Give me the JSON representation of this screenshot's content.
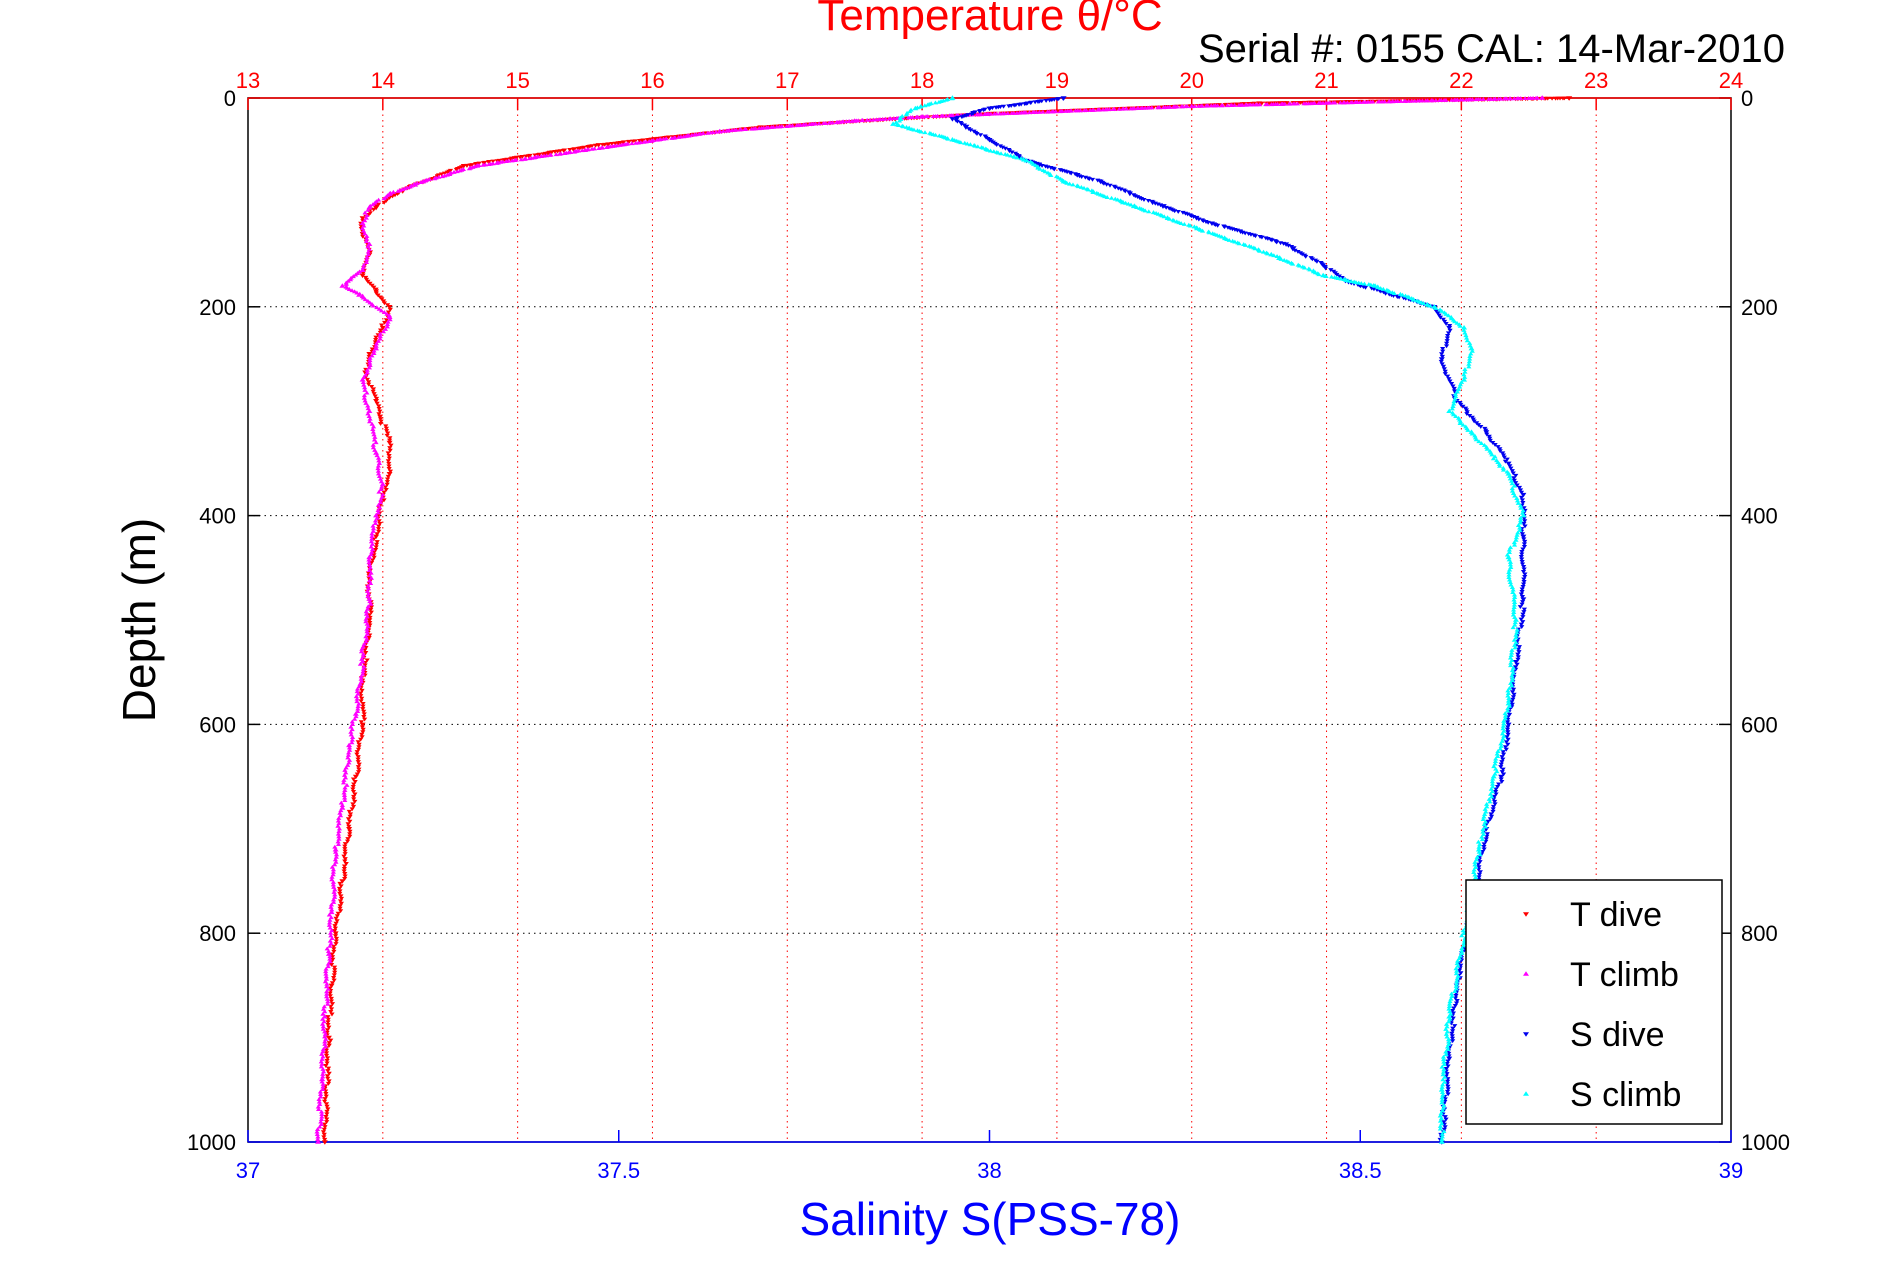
{
  "chart_data": {
    "type": "scatter",
    "title": "Temperature θ/°C",
    "subtitle": "Serial #: 0155  CAL: 14-Mar-2010",
    "ylabel": "Depth (m)",
    "xlabel_bottom": "Salinity S(PSS-78)",
    "x_top": {
      "label": "Temperature θ/°C",
      "lim": [
        13,
        24
      ],
      "ticks": [
        "13",
        "14",
        "15",
        "16",
        "17",
        "18",
        "19",
        "20",
        "21",
        "22",
        "23",
        "24"
      ]
    },
    "x_bottom": {
      "label": "Salinity S(PSS-78)",
      "lim": [
        37,
        39
      ],
      "ticks": [
        "37",
        "37.5",
        "38",
        "38.5",
        "39"
      ]
    },
    "y": {
      "lim": [
        0,
        1000
      ],
      "reversed": true,
      "ticks": [
        "0",
        "200",
        "400",
        "600",
        "800",
        "1000"
      ]
    },
    "grid": true,
    "legend_position": "bottom-right",
    "colors": {
      "temperature_axis": "#ff0000",
      "salinity_axis": "#0000ff",
      "t_dive": "#ff0000",
      "t_climb": "#ff00ff",
      "s_dive": "#0000ee",
      "s_climb": "#00ffff"
    },
    "series": [
      {
        "name": "T dive",
        "axis": "temperature",
        "marker": "down-triangle",
        "x": [
          22.8,
          20.5,
          18.5,
          17.8,
          16.8,
          15.6,
          14.6,
          14.2,
          14.05,
          13.95,
          13.85,
          13.85,
          13.9,
          13.85,
          13.95,
          14.05,
          14.0,
          13.9,
          13.88,
          13.95,
          13.98,
          14.05,
          14.05,
          14.0,
          13.95,
          13.9,
          13.9,
          13.85,
          13.85,
          13.8,
          13.75,
          13.7,
          13.65,
          13.62,
          13.6,
          13.57
        ],
        "y": [
          0,
          5,
          15,
          20,
          28,
          45,
          65,
          85,
          95,
          105,
          115,
          130,
          150,
          170,
          185,
          200,
          220,
          245,
          265,
          290,
          305,
          330,
          360,
          380,
          420,
          460,
          500,
          560,
          600,
          650,
          700,
          750,
          800,
          850,
          900,
          1000
        ]
      },
      {
        "name": "T climb",
        "axis": "temperature",
        "marker": "up-triangle",
        "x": [
          22.6,
          20.0,
          18.0,
          17.5,
          16.5,
          15.5,
          14.7,
          14.3,
          14.05,
          13.9,
          13.85,
          13.9,
          13.85,
          13.7,
          13.85,
          14.05,
          13.95,
          13.85,
          13.9,
          13.95,
          14.0,
          13.95,
          13.9,
          13.9,
          13.85,
          13.8,
          13.75,
          13.7,
          13.65,
          13.62,
          13.6,
          13.57,
          13.55,
          13.52
        ],
        "y": [
          0,
          8,
          18,
          22,
          32,
          50,
          65,
          80,
          92,
          105,
          120,
          140,
          165,
          180,
          190,
          210,
          240,
          270,
          300,
          340,
          370,
          400,
          440,
          480,
          540,
          590,
          620,
          680,
          720,
          780,
          820,
          880,
          940,
          1000
        ]
      },
      {
        "name": "S dive",
        "axis": "salinity",
        "marker": "down-triangle",
        "x": [
          38.1,
          38.0,
          37.95,
          38.0,
          38.05,
          38.15,
          38.22,
          38.3,
          38.4,
          38.45,
          38.48,
          38.55,
          38.6,
          38.62,
          38.61,
          38.63,
          38.67,
          38.7,
          38.72,
          38.72,
          38.72,
          38.71,
          38.7,
          38.69,
          38.67,
          38.65,
          38.63,
          38.62,
          38.61
        ],
        "y": [
          0,
          10,
          20,
          40,
          60,
          80,
          100,
          120,
          140,
          160,
          175,
          190,
          200,
          220,
          250,
          290,
          320,
          350,
          380,
          420,
          480,
          540,
          600,
          650,
          700,
          780,
          850,
          920,
          1000
        ]
      },
      {
        "name": "S climb",
        "axis": "salinity",
        "marker": "up-triangle",
        "x": [
          37.95,
          37.9,
          37.87,
          37.95,
          38.05,
          38.1,
          38.18,
          38.28,
          38.38,
          38.45,
          38.52,
          38.6,
          38.64,
          38.65,
          38.64,
          38.62,
          38.65,
          38.7,
          38.72,
          38.7,
          38.71,
          38.7,
          38.68,
          38.66,
          38.64,
          38.62,
          38.61,
          38.61
        ],
        "y": [
          0,
          10,
          25,
          40,
          60,
          80,
          100,
          125,
          150,
          170,
          180,
          200,
          220,
          240,
          270,
          300,
          320,
          360,
          400,
          440,
          500,
          580,
          650,
          720,
          800,
          880,
          950,
          1000
        ]
      }
    ]
  }
}
